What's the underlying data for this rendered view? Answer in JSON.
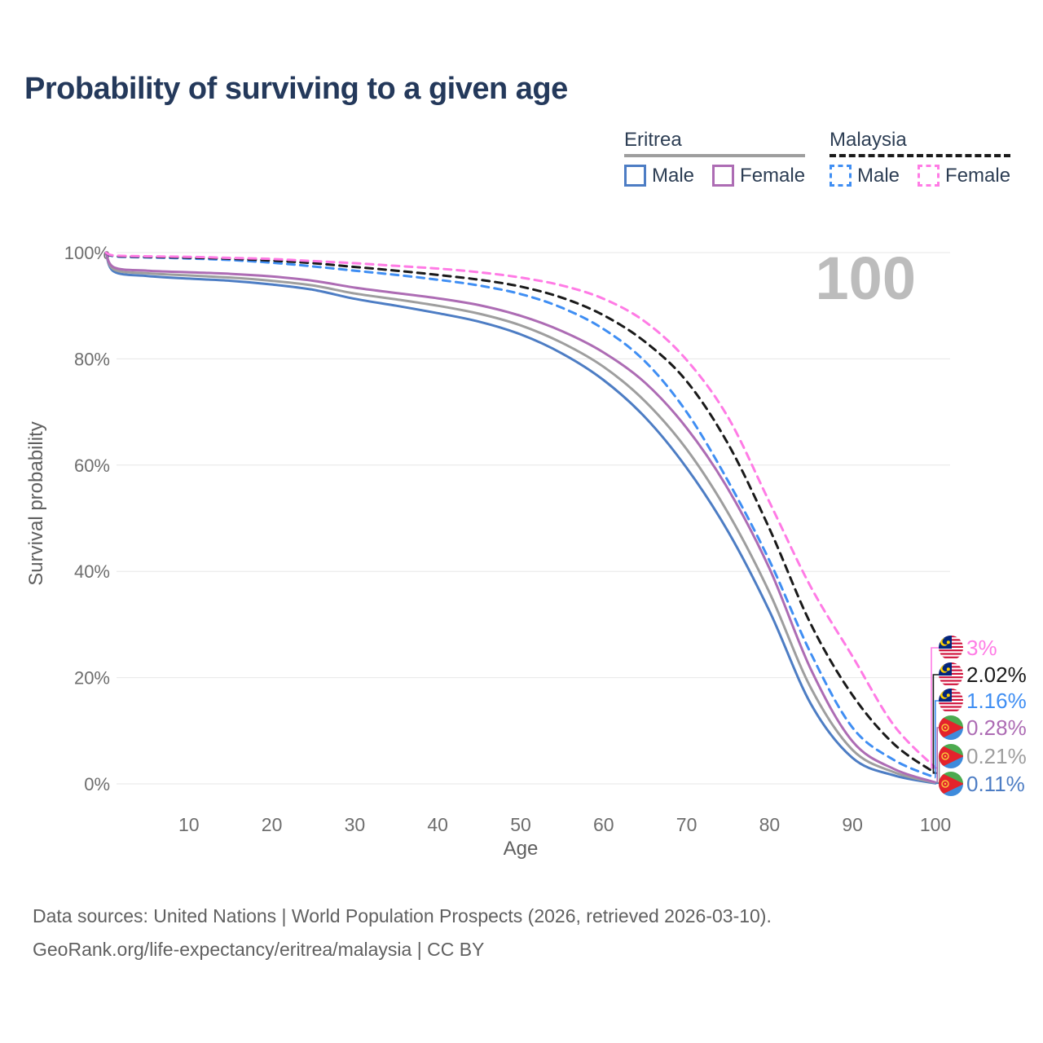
{
  "title": "Probability of surviving to a given age",
  "watermark": "100",
  "legend": {
    "groups": [
      {
        "key": "eritrea",
        "label": "Eritrea",
        "line_style": "solid",
        "line_color": "#9e9e9e",
        "items": [
          {
            "key": "eritrea_male",
            "label": "Male"
          },
          {
            "key": "eritrea_female",
            "label": "Female"
          }
        ]
      },
      {
        "key": "malaysia",
        "label": "Malaysia",
        "line_style": "dashed",
        "line_color": "#1a1a1a",
        "items": [
          {
            "key": "malaysia_male",
            "label": "Male"
          },
          {
            "key": "malaysia_female",
            "label": "Female"
          }
        ]
      }
    ]
  },
  "chart_data": {
    "type": "line",
    "title": "Probability of surviving to a given age",
    "xlabel": "Age",
    "ylabel": "Survival probability",
    "xlim": [
      0,
      100
    ],
    "ylim": [
      0,
      100
    ],
    "grid": true,
    "x_ticks": [
      10,
      20,
      30,
      40,
      50,
      60,
      70,
      80,
      90,
      100
    ],
    "y_ticks": [
      0,
      20,
      40,
      60,
      80,
      100
    ],
    "y_tick_labels": [
      "0%",
      "20%",
      "40%",
      "60%",
      "80%",
      "100%"
    ],
    "x": [
      0,
      1,
      5,
      10,
      15,
      20,
      25,
      30,
      35,
      40,
      45,
      50,
      55,
      60,
      65,
      70,
      75,
      80,
      85,
      90,
      95,
      100
    ],
    "series": [
      {
        "key": "malaysia_female",
        "name": "Malaysia Female",
        "color": "#ff7be5",
        "dash": true,
        "flag": "malaysia",
        "end_label": "3%",
        "values": [
          100,
          99.45,
          99.3,
          99.2,
          99.0,
          98.8,
          98.4,
          98.0,
          97.5,
          97.0,
          96.3,
          95.3,
          93.8,
          91.3,
          87.0,
          79.8,
          69.0,
          53.0,
          37.0,
          24.0,
          11.0,
          3.0
        ]
      },
      {
        "key": "malaysia_both",
        "name": "Malaysia",
        "color": "#1a1a1a",
        "dash": true,
        "flag": "malaysia",
        "end_label": "2.02%",
        "values": [
          100,
          99.37,
          99.2,
          99.05,
          98.85,
          98.5,
          98.0,
          97.3,
          96.6,
          95.8,
          94.9,
          93.6,
          91.5,
          88.2,
          83.2,
          75.8,
          64.0,
          48.0,
          30.0,
          16.7,
          7.5,
          2.02
        ]
      },
      {
        "key": "malaysia_male",
        "name": "Malaysia Male",
        "color": "#3f8ef3",
        "dash": true,
        "flag": "malaysia",
        "end_label": "1.16%",
        "values": [
          100,
          99.3,
          99.1,
          98.9,
          98.6,
          98.1,
          97.4,
          96.6,
          95.8,
          94.9,
          93.8,
          92.2,
          89.6,
          85.6,
          79.5,
          70.0,
          57.0,
          42.0,
          24.5,
          10.6,
          4.5,
          1.16
        ]
      },
      {
        "key": "eritrea_female",
        "name": "Eritrea Female",
        "color": "#ad6cb4",
        "dash": false,
        "flag": "eritrea",
        "end_label": "0.28%",
        "values": [
          100,
          97.2,
          96.6,
          96.3,
          96.0,
          95.5,
          94.7,
          93.4,
          92.4,
          91.4,
          90.1,
          88.1,
          85.2,
          81.2,
          75.5,
          67.0,
          55.5,
          40.5,
          21.5,
          8.0,
          2.8,
          0.28
        ]
      },
      {
        "key": "eritrea_both",
        "name": "Eritrea",
        "color": "#9e9e9e",
        "dash": false,
        "flag": "eritrea",
        "end_label": "0.21%",
        "values": [
          100,
          96.8,
          96.1,
          95.7,
          95.3,
          94.7,
          93.8,
          92.3,
          91.2,
          90.0,
          88.5,
          86.3,
          83.0,
          78.5,
          72.0,
          63.0,
          51.0,
          36.0,
          18.0,
          6.4,
          2.2,
          0.21
        ]
      },
      {
        "key": "eritrea_male",
        "name": "Eritrea Male",
        "color": "#4d7dc4",
        "dash": false,
        "flag": "eritrea",
        "end_label": "0.11%",
        "values": [
          100,
          96.4,
          95.6,
          95.1,
          94.7,
          94.0,
          93.0,
          91.3,
          90.0,
          88.6,
          87.0,
          84.6,
          81.0,
          76.0,
          69.0,
          59.5,
          47.5,
          32.5,
          15.0,
          4.9,
          1.6,
          0.11
        ]
      }
    ]
  },
  "footer": {
    "line1": "Data sources: United Nations | World Population Prospects (2026, retrieved 2026-03-10).",
    "line2": "GeoRank.org/life-expectancy/eritrea/malaysia | CC BY"
  }
}
